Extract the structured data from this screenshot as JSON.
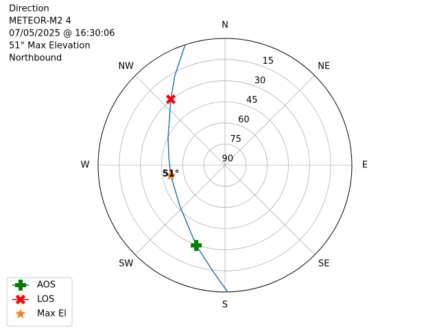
{
  "chart_data": {
    "type": "polar",
    "title": [
      "Direction",
      "METEOR-M2 4",
      "07/05/2025 @ 16:30:06",
      "51° Max Elevation",
      "Northbound"
    ],
    "rlim": [
      90,
      0
    ],
    "rticks": [
      15,
      30,
      45,
      60,
      75,
      90
    ],
    "thetaticks": [
      {
        "value": 0,
        "label": "N"
      },
      {
        "value": 45,
        "label": "NE"
      },
      {
        "value": 90,
        "label": "E"
      },
      {
        "value": 135,
        "label": "SE"
      },
      {
        "value": 180,
        "label": "S"
      },
      {
        "value": 225,
        "label": "SW"
      },
      {
        "value": 270,
        "label": "W"
      },
      {
        "value": 315,
        "label": "NW"
      }
    ],
    "grid": true,
    "series": [
      {
        "color": "#1f77b4",
        "marker": "none",
        "az": [
          178.8,
          186.7,
          199.7,
          228.2,
          259.2,
          277.6,
          296.3,
          320.6,
          330.9,
          341.7
        ],
        "el": [
          0,
          14.6,
          29.5,
          46.9,
          50.9,
          49.8,
          45,
          29.5,
          17,
          0
        ]
      },
      {
        "name": "AOS",
        "color": "green",
        "marker": "plus",
        "az": [
          199.7
        ],
        "el": [
          29.5
        ]
      },
      {
        "name": "LOS",
        "color": "red",
        "marker": "x",
        "az": [
          320.6
        ],
        "el": [
          29.5
        ]
      },
      {
        "name": "Max El",
        "color": "#ff7f0e",
        "marker": "star",
        "az": [
          259.2
        ],
        "el": [
          50.9
        ]
      }
    ],
    "annotations": [
      {
        "text": "51°"
      }
    ],
    "legend": "lower left"
  }
}
